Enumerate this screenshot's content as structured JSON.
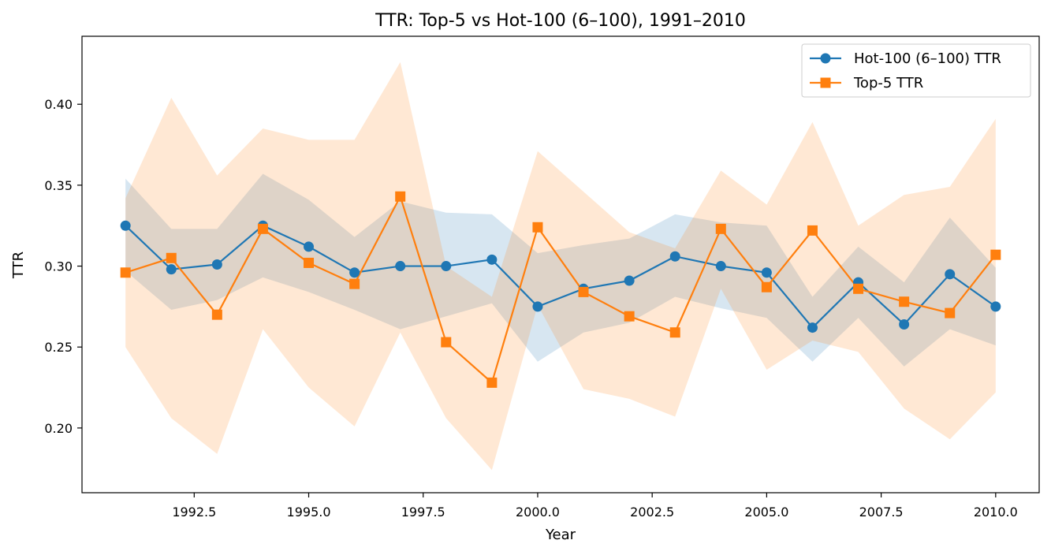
{
  "chart_data": {
    "type": "line",
    "title": "TTR: Top-5 vs Hot-100 (6–100), 1991–2010",
    "xlabel": "Year",
    "ylabel": "TTR",
    "xlim": [
      1990.05,
      2010.95
    ],
    "ylim": [
      0.16,
      0.442
    ],
    "xticks": [
      1992.5,
      1995.0,
      1997.5,
      2000.0,
      2002.5,
      2005.0,
      2007.5,
      2010.0
    ],
    "xtick_labels": [
      "1992.5",
      "1995.0",
      "1997.5",
      "2000.0",
      "2002.5",
      "2005.0",
      "2007.5",
      "2010.0"
    ],
    "yticks": [
      0.2,
      0.25,
      0.3,
      0.35,
      0.4
    ],
    "ytick_labels": [
      "0.20",
      "0.25",
      "0.30",
      "0.35",
      "0.40"
    ],
    "grid": false,
    "legend_position": "top-right",
    "x": [
      1991,
      1992,
      1993,
      1994,
      1995,
      1996,
      1997,
      1998,
      1999,
      2000,
      2001,
      2002,
      2003,
      2004,
      2005,
      2006,
      2007,
      2008,
      2009,
      2010
    ],
    "series": [
      {
        "name": "Hot-100 (6–100) TTR",
        "color": "#1f77b4",
        "marker": "circle",
        "values": [
          0.325,
          0.298,
          0.301,
          0.325,
          0.312,
          0.296,
          0.3,
          0.3,
          0.304,
          0.275,
          0.286,
          0.291,
          0.306,
          0.3,
          0.296,
          0.262,
          0.29,
          0.264,
          0.295,
          0.275
        ],
        "band_lower": [
          0.297,
          0.273,
          0.279,
          0.293,
          0.284,
          0.273,
          0.261,
          0.269,
          0.277,
          0.241,
          0.259,
          0.265,
          0.281,
          0.274,
          0.268,
          0.241,
          0.268,
          0.238,
          0.261,
          0.251
        ],
        "band_upper": [
          0.354,
          0.323,
          0.323,
          0.357,
          0.341,
          0.318,
          0.34,
          0.333,
          0.332,
          0.308,
          0.313,
          0.317,
          0.332,
          0.327,
          0.325,
          0.281,
          0.312,
          0.29,
          0.33,
          0.299
        ]
      },
      {
        "name": "Top-5 TTR",
        "color": "#ff7f0e",
        "marker": "square",
        "values": [
          0.296,
          0.305,
          0.27,
          0.323,
          0.302,
          0.289,
          0.343,
          0.253,
          0.228,
          0.324,
          0.284,
          0.269,
          0.259,
          0.323,
          0.287,
          0.322,
          0.286,
          0.278,
          0.271,
          0.307
        ],
        "band_lower": [
          0.25,
          0.206,
          0.184,
          0.261,
          0.225,
          0.201,
          0.259,
          0.206,
          0.174,
          0.276,
          0.224,
          0.218,
          0.207,
          0.286,
          0.236,
          0.254,
          0.247,
          0.212,
          0.193,
          0.222
        ],
        "band_upper": [
          0.342,
          0.404,
          0.356,
          0.385,
          0.378,
          0.378,
          0.426,
          0.3,
          0.281,
          0.371,
          0.346,
          0.321,
          0.311,
          0.359,
          0.338,
          0.389,
          0.325,
          0.344,
          0.349,
          0.391
        ]
      }
    ]
  }
}
